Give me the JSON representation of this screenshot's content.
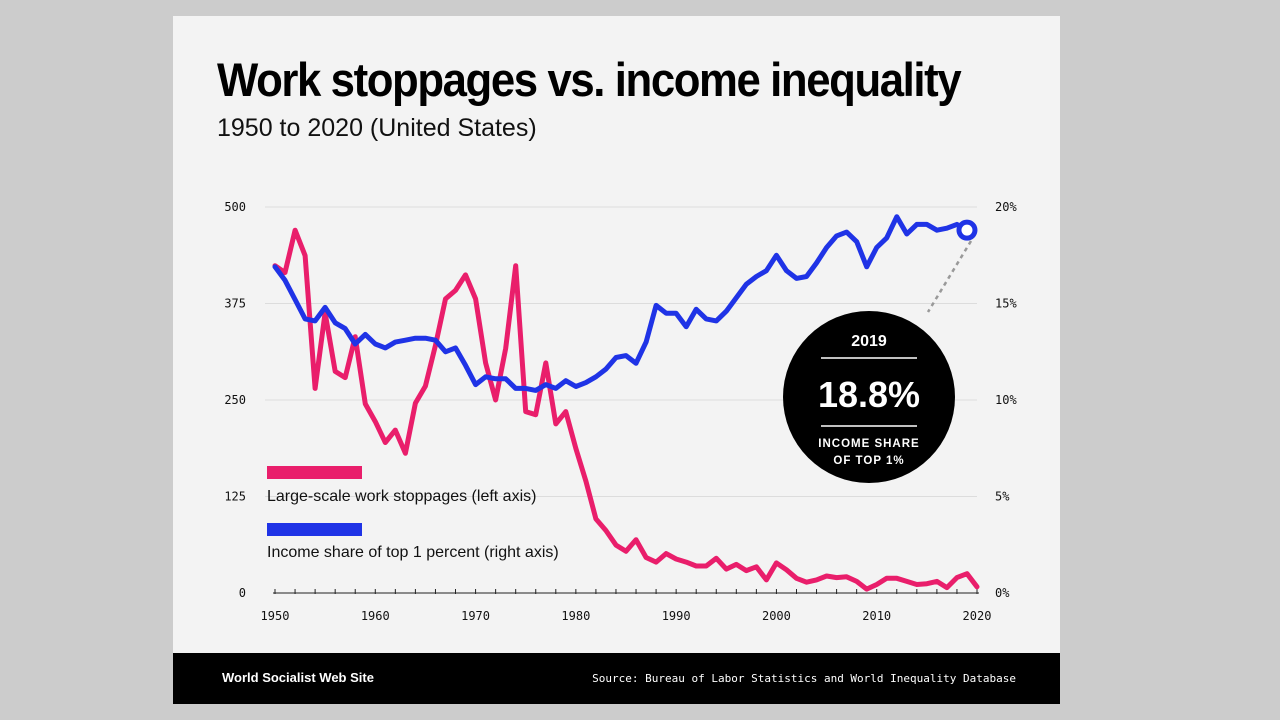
{
  "footer": {
    "brand": "World Socialist Web Site",
    "source": "Source: Bureau of Labor Statistics and World Inequality Database"
  },
  "callout": {
    "year": "2019",
    "value": "18.8%",
    "caption_line1": "INCOME SHARE",
    "caption_line2": "OF TOP 1%"
  },
  "colors": {
    "stoppages": "#e91e6b",
    "income": "#1f33e6",
    "grid": "#dcdcdc",
    "background": "#f3f3f3"
  },
  "chart_data": {
    "type": "line",
    "title": "Work stoppages vs. income inequality",
    "subtitle": "1950 to 2020 (United States)",
    "xlabel": "",
    "xlim": [
      1950,
      2020
    ],
    "x_ticks": [
      1950,
      1960,
      1970,
      1980,
      1990,
      2000,
      2010,
      2020
    ],
    "left_axis": {
      "ylim": [
        0,
        500
      ],
      "ticks": [
        "0",
        "125",
        "250",
        "375",
        "500"
      ],
      "tick_values": [
        0,
        125,
        250,
        375,
        500
      ]
    },
    "right_axis": {
      "ylim": [
        0,
        20
      ],
      "ticks": [
        "0%",
        "5%",
        "10%",
        "15%",
        "20%"
      ],
      "tick_values": [
        0,
        5,
        10,
        15,
        20
      ]
    },
    "grid": true,
    "legend": "inside-left",
    "series": [
      {
        "name": "Large-scale work stoppages (left axis)",
        "axis": "left",
        "x": [
          1950,
          1951,
          1952,
          1953,
          1954,
          1955,
          1956,
          1957,
          1958,
          1959,
          1960,
          1961,
          1962,
          1963,
          1964,
          1965,
          1966,
          1967,
          1968,
          1969,
          1970,
          1971,
          1972,
          1973,
          1974,
          1975,
          1976,
          1977,
          1978,
          1979,
          1980,
          1981,
          1982,
          1983,
          1984,
          1985,
          1986,
          1987,
          1988,
          1989,
          1990,
          1991,
          1992,
          1993,
          1994,
          1995,
          1996,
          1997,
          1998,
          1999,
          2000,
          2001,
          2002,
          2003,
          2004,
          2005,
          2006,
          2007,
          2008,
          2009,
          2010,
          2011,
          2012,
          2013,
          2014,
          2015,
          2016,
          2017,
          2018,
          2019,
          2020
        ],
        "values": [
          424,
          415,
          470,
          437,
          265,
          363,
          287,
          279,
          332,
          245,
          222,
          195,
          211,
          181,
          246,
          268,
          321,
          381,
          392,
          412,
          381,
          298,
          250,
          317,
          424,
          235,
          231,
          298,
          219,
          235,
          187,
          145,
          96,
          81,
          62,
          54,
          69,
          46,
          40,
          51,
          44,
          40,
          35,
          35,
          45,
          31,
          37,
          29,
          34,
          17,
          39,
          30,
          19,
          14,
          17,
          22,
          20,
          21,
          15,
          5,
          11,
          19,
          19,
          15,
          11,
          12,
          15,
          7,
          20,
          25,
          8
        ]
      },
      {
        "name": "Income share of top 1 percent (right axis)",
        "axis": "right",
        "x": [
          1950,
          1951,
          1952,
          1953,
          1954,
          1955,
          1956,
          1957,
          1958,
          1959,
          1960,
          1961,
          1962,
          1963,
          1964,
          1965,
          1966,
          1967,
          1968,
          1969,
          1970,
          1971,
          1972,
          1973,
          1974,
          1975,
          1976,
          1977,
          1978,
          1979,
          1980,
          1981,
          1982,
          1983,
          1984,
          1985,
          1986,
          1987,
          1988,
          1989,
          1990,
          1991,
          1992,
          1993,
          1994,
          1995,
          1996,
          1997,
          1998,
          1999,
          2000,
          2001,
          2002,
          2003,
          2004,
          2005,
          2006,
          2007,
          2008,
          2009,
          2010,
          2011,
          2012,
          2013,
          2014,
          2015,
          2016,
          2017,
          2018,
          2019
        ],
        "values": [
          16.9,
          16.2,
          15.2,
          14.2,
          14.1,
          14.8,
          14.0,
          13.7,
          12.9,
          13.4,
          12.9,
          12.7,
          13.0,
          13.1,
          13.2,
          13.2,
          13.1,
          12.5,
          12.7,
          11.8,
          10.8,
          11.2,
          11.1,
          11.1,
          10.6,
          10.6,
          10.5,
          10.8,
          10.6,
          11.0,
          10.7,
          10.9,
          11.2,
          11.6,
          12.2,
          12.3,
          11.9,
          13.0,
          14.9,
          14.5,
          14.5,
          13.8,
          14.7,
          14.2,
          14.1,
          14.6,
          15.3,
          16.0,
          16.4,
          16.7,
          17.5,
          16.7,
          16.3,
          16.4,
          17.1,
          17.9,
          18.5,
          18.7,
          18.2,
          16.9,
          17.9,
          18.4,
          19.5,
          18.6,
          19.1,
          19.1,
          18.8,
          18.9,
          19.1,
          18.8
        ]
      }
    ],
    "annotations": [
      {
        "x": 2019,
        "series": "Income share of top 1 percent (right axis)",
        "label": "2019 — 18.8% income share of top 1%"
      }
    ]
  }
}
